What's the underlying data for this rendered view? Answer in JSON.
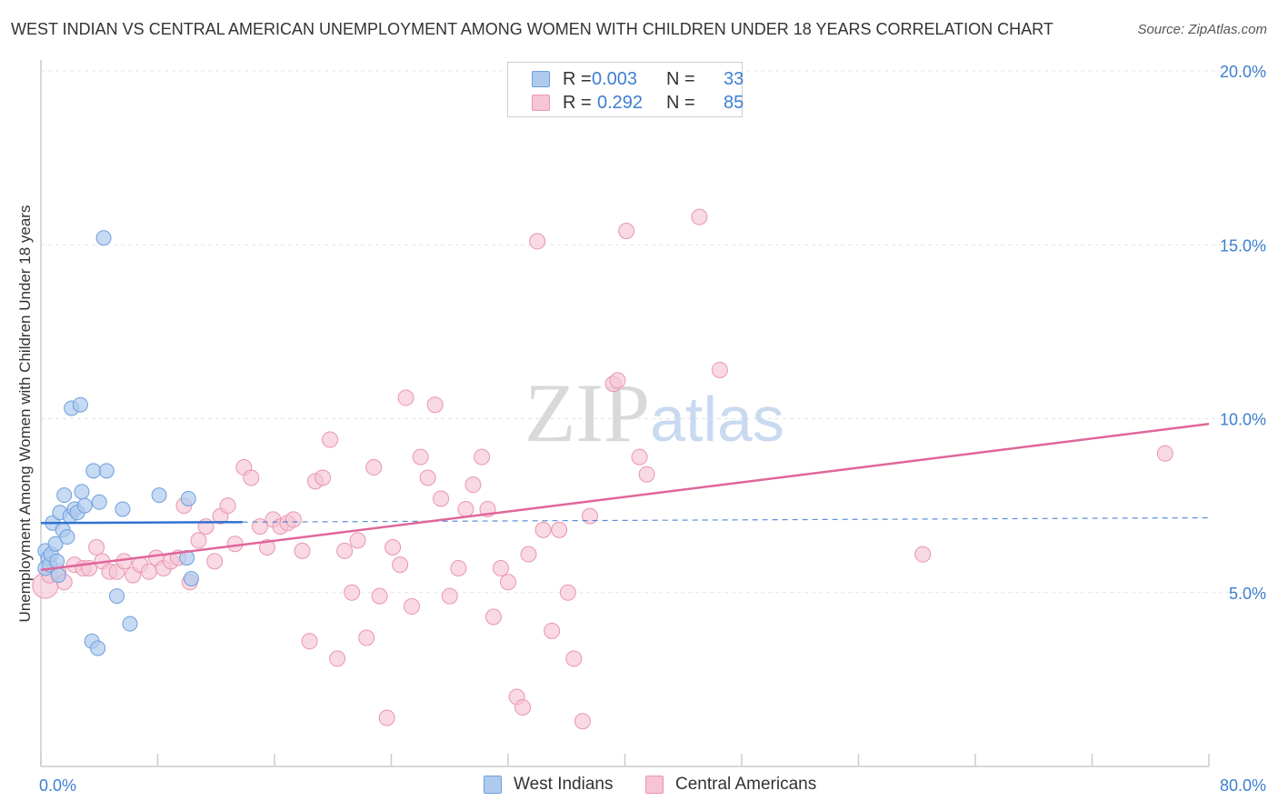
{
  "title": "WEST INDIAN VS CENTRAL AMERICAN UNEMPLOYMENT AMONG WOMEN WITH CHILDREN UNDER 18 YEARS CORRELATION CHART",
  "source": "Source: ZipAtlas.com",
  "watermark": "ZIPatlas",
  "colors": {
    "west_indians_fill": "#aecbee",
    "west_indians_stroke": "#6e9fdc",
    "west_indians_line": "#2f72cf",
    "central_americans_fill": "#f6c4d4",
    "central_americans_stroke": "#e996b2",
    "central_americans_line": "#e0669a",
    "axis_label": "#3d7fd1"
  },
  "legend": {
    "rows": [
      {
        "r_label": "R =",
        "r_value": "0.003",
        "n_label": "N =",
        "n_value": "33"
      },
      {
        "r_label": "R =",
        "r_value": "0.292",
        "n_label": "N =",
        "n_value": "85"
      }
    ]
  },
  "bottom_legend": [
    "West Indians",
    "Central Americans"
  ],
  "chart_data": {
    "type": "scatter",
    "title": "WEST INDIAN VS CENTRAL AMERICAN UNEMPLOYMENT AMONG WOMEN WITH CHILDREN UNDER 18 YEARS CORRELATION CHART",
    "xlabel": "",
    "ylabel": "Unemployment Among Women with Children Under 18 years",
    "xlim": [
      0,
      80
    ],
    "ylim": [
      0,
      20
    ],
    "x_tick_labels": [
      "0.0%",
      "80.0%"
    ],
    "y_tick_labels": [
      "5.0%",
      "10.0%",
      "15.0%",
      "20.0%"
    ],
    "y_ticks": [
      5,
      10,
      15,
      20
    ],
    "grid": true,
    "legend_placement": "top-center",
    "series": [
      {
        "name": "West Indians",
        "r": 0.003,
        "n": 33,
        "trend": {
          "x": [
            0,
            80
          ],
          "y": [
            7.0,
            7.15
          ],
          "solid_until": 13.8
        },
        "points": [
          [
            0.3,
            6.2
          ],
          [
            0.3,
            5.7
          ],
          [
            0.5,
            6.0
          ],
          [
            0.6,
            5.8
          ],
          [
            0.7,
            6.1
          ],
          [
            0.8,
            7.0
          ],
          [
            1.0,
            6.4
          ],
          [
            1.1,
            5.9
          ],
          [
            1.3,
            7.3
          ],
          [
            1.5,
            6.8
          ],
          [
            1.6,
            7.8
          ],
          [
            1.8,
            6.6
          ],
          [
            2.0,
            7.2
          ],
          [
            2.1,
            10.3
          ],
          [
            2.3,
            7.4
          ],
          [
            2.5,
            7.3
          ],
          [
            2.7,
            10.4
          ],
          [
            2.8,
            7.9
          ],
          [
            3.0,
            7.5
          ],
          [
            3.5,
            3.6
          ],
          [
            3.6,
            8.5
          ],
          [
            3.9,
            3.4
          ],
          [
            4.0,
            7.6
          ],
          [
            4.3,
            15.2
          ],
          [
            4.5,
            8.5
          ],
          [
            5.2,
            4.9
          ],
          [
            5.6,
            7.4
          ],
          [
            6.1,
            4.1
          ],
          [
            8.1,
            7.8
          ],
          [
            10.0,
            6.0
          ],
          [
            10.1,
            7.7
          ],
          [
            10.3,
            5.4
          ],
          [
            1.2,
            5.5
          ]
        ]
      },
      {
        "name": "Central Americans",
        "r": 0.292,
        "n": 85,
        "trend": {
          "x": [
            0,
            80
          ],
          "y": [
            5.65,
            9.85
          ]
        },
        "points": [
          [
            0.3,
            5.2
          ],
          [
            0.6,
            5.5
          ],
          [
            1.2,
            5.6
          ],
          [
            1.6,
            5.3
          ],
          [
            2.3,
            5.8
          ],
          [
            2.9,
            5.7
          ],
          [
            3.3,
            5.7
          ],
          [
            3.8,
            6.3
          ],
          [
            4.2,
            5.9
          ],
          [
            4.7,
            5.6
          ],
          [
            5.2,
            5.6
          ],
          [
            5.7,
            5.9
          ],
          [
            6.3,
            5.5
          ],
          [
            6.8,
            5.8
          ],
          [
            7.4,
            5.6
          ],
          [
            7.9,
            6.0
          ],
          [
            8.4,
            5.7
          ],
          [
            8.9,
            5.9
          ],
          [
            9.4,
            6.0
          ],
          [
            9.8,
            7.5
          ],
          [
            10.2,
            5.3
          ],
          [
            10.8,
            6.5
          ],
          [
            11.3,
            6.9
          ],
          [
            11.9,
            5.9
          ],
          [
            12.3,
            7.2
          ],
          [
            12.8,
            7.5
          ],
          [
            13.3,
            6.4
          ],
          [
            13.9,
            8.6
          ],
          [
            14.4,
            8.3
          ],
          [
            15.0,
            6.9
          ],
          [
            15.5,
            6.3
          ],
          [
            15.9,
            7.1
          ],
          [
            16.4,
            6.9
          ],
          [
            16.9,
            7.0
          ],
          [
            17.3,
            7.1
          ],
          [
            17.9,
            6.2
          ],
          [
            18.4,
            3.6
          ],
          [
            18.8,
            8.2
          ],
          [
            19.3,
            8.3
          ],
          [
            19.8,
            9.4
          ],
          [
            20.3,
            3.1
          ],
          [
            20.8,
            6.2
          ],
          [
            21.3,
            5.0
          ],
          [
            21.7,
            6.5
          ],
          [
            22.3,
            3.7
          ],
          [
            22.8,
            8.6
          ],
          [
            23.2,
            4.9
          ],
          [
            23.7,
            1.4
          ],
          [
            24.1,
            6.3
          ],
          [
            24.6,
            5.8
          ],
          [
            25.0,
            10.6
          ],
          [
            25.4,
            4.6
          ],
          [
            26.0,
            8.9
          ],
          [
            26.5,
            8.3
          ],
          [
            27.0,
            10.4
          ],
          [
            27.4,
            7.7
          ],
          [
            28.0,
            4.9
          ],
          [
            28.6,
            5.7
          ],
          [
            29.1,
            7.4
          ],
          [
            29.6,
            8.1
          ],
          [
            30.2,
            8.9
          ],
          [
            30.6,
            7.4
          ],
          [
            31.0,
            4.3
          ],
          [
            31.5,
            5.7
          ],
          [
            32.0,
            5.3
          ],
          [
            32.6,
            2.0
          ],
          [
            33.0,
            1.7
          ],
          [
            33.4,
            6.1
          ],
          [
            34.0,
            15.1
          ],
          [
            34.4,
            6.8
          ],
          [
            35.0,
            3.9
          ],
          [
            35.5,
            6.8
          ],
          [
            36.1,
            5.0
          ],
          [
            36.5,
            3.1
          ],
          [
            37.1,
            1.3
          ],
          [
            37.6,
            7.2
          ],
          [
            39.2,
            11.0
          ],
          [
            39.5,
            11.1
          ],
          [
            40.1,
            15.4
          ],
          [
            41.0,
            8.9
          ],
          [
            41.5,
            8.4
          ],
          [
            45.1,
            15.8
          ],
          [
            46.5,
            11.4
          ],
          [
            60.4,
            6.1
          ],
          [
            77.0,
            9.0
          ]
        ]
      }
    ]
  }
}
